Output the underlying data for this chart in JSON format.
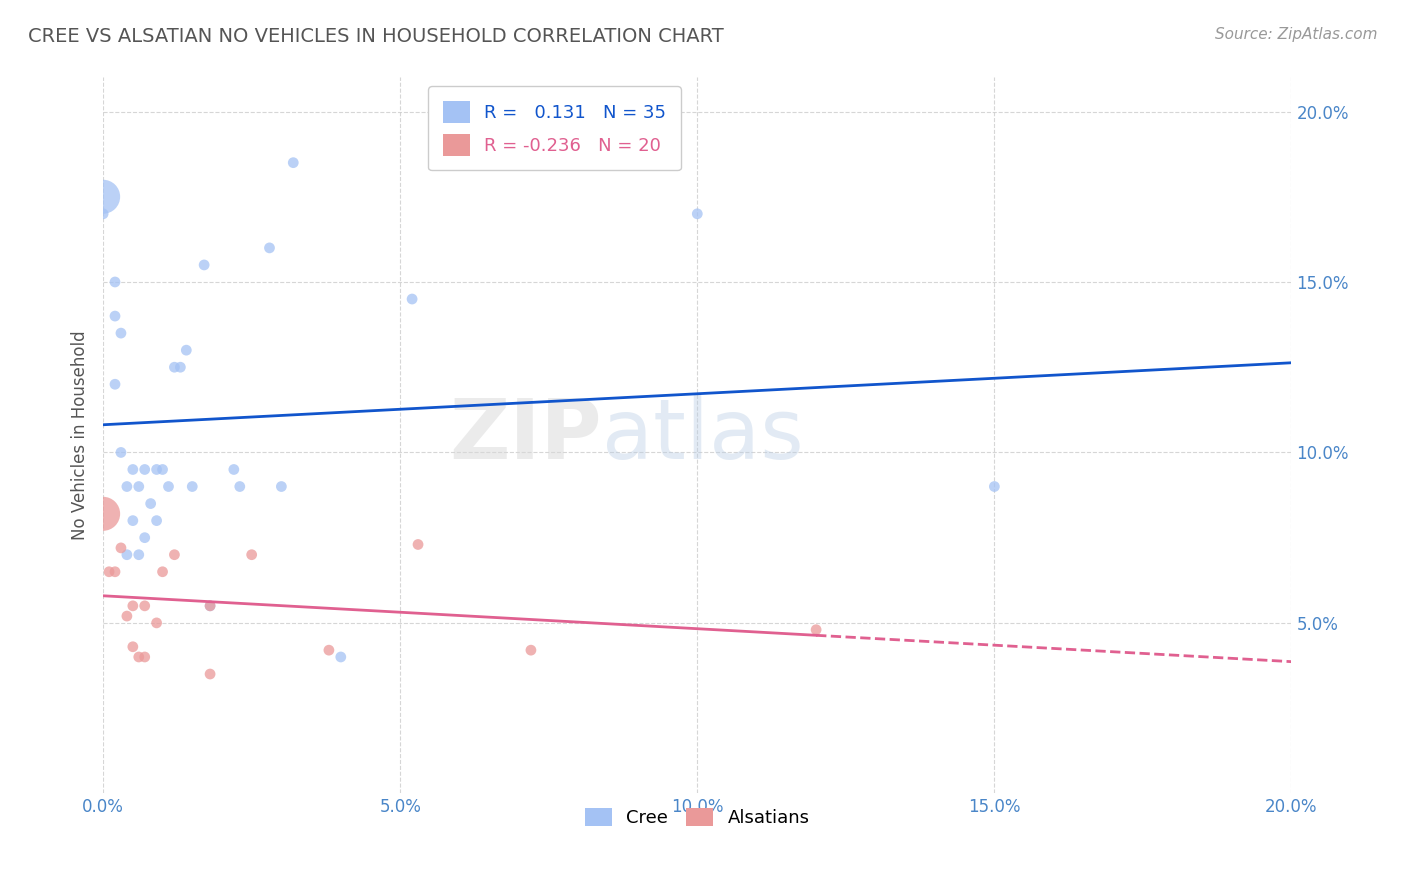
{
  "title": "CREE VS ALSATIAN NO VEHICLES IN HOUSEHOLD CORRELATION CHART",
  "source": "Source: ZipAtlas.com",
  "ylabel": "No Vehicles in Household",
  "watermark": "ZIPatlas",
  "xlim": [
    0.0,
    0.2
  ],
  "ylim": [
    0.0,
    0.21
  ],
  "xticks": [
    0.0,
    0.05,
    0.1,
    0.15,
    0.2
  ],
  "yticks": [
    0.05,
    0.1,
    0.15,
    0.2
  ],
  "xtick_labels": [
    "0.0%",
    "5.0%",
    "10.0%",
    "15.0%",
    "20.0%"
  ],
  "ytick_labels": [
    "5.0%",
    "10.0%",
    "15.0%",
    "20.0%"
  ],
  "cree_color": "#a4c2f4",
  "alsatian_color": "#ea9999",
  "cree_line_color": "#1155cc",
  "alsatian_line_color": "#e06090",
  "legend_R_cree": "0.131",
  "legend_N_cree": "35",
  "legend_R_alsatian": "-0.236",
  "legend_N_alsatian": "20",
  "cree_x": [
    0.0,
    0.0,
    0.002,
    0.002,
    0.002,
    0.003,
    0.003,
    0.004,
    0.004,
    0.005,
    0.005,
    0.006,
    0.006,
    0.007,
    0.007,
    0.008,
    0.009,
    0.009,
    0.01,
    0.011,
    0.012,
    0.013,
    0.014,
    0.015,
    0.017,
    0.018,
    0.022,
    0.023,
    0.028,
    0.03,
    0.032,
    0.04,
    0.052,
    0.1,
    0.15
  ],
  "cree_y": [
    0.175,
    0.17,
    0.15,
    0.14,
    0.12,
    0.135,
    0.1,
    0.09,
    0.07,
    0.095,
    0.08,
    0.09,
    0.07,
    0.095,
    0.075,
    0.085,
    0.095,
    0.08,
    0.095,
    0.09,
    0.125,
    0.125,
    0.13,
    0.09,
    0.155,
    0.055,
    0.095,
    0.09,
    0.16,
    0.09,
    0.185,
    0.04,
    0.145,
    0.17,
    0.09
  ],
  "cree_sizes": [
    600,
    60,
    60,
    60,
    60,
    60,
    60,
    60,
    60,
    60,
    60,
    60,
    60,
    60,
    60,
    60,
    60,
    60,
    60,
    60,
    60,
    60,
    60,
    60,
    60,
    60,
    60,
    60,
    60,
    60,
    60,
    60,
    60,
    60,
    60
  ],
  "alsatian_x": [
    0.0,
    0.001,
    0.002,
    0.003,
    0.004,
    0.005,
    0.005,
    0.006,
    0.007,
    0.007,
    0.009,
    0.01,
    0.012,
    0.018,
    0.018,
    0.025,
    0.038,
    0.053,
    0.072,
    0.12
  ],
  "alsatian_y": [
    0.082,
    0.065,
    0.065,
    0.072,
    0.052,
    0.055,
    0.043,
    0.04,
    0.055,
    0.04,
    0.05,
    0.065,
    0.07,
    0.055,
    0.035,
    0.07,
    0.042,
    0.073,
    0.042,
    0.048
  ],
  "alsatian_sizes": [
    600,
    60,
    60,
    60,
    60,
    60,
    60,
    60,
    60,
    60,
    60,
    60,
    60,
    60,
    60,
    60,
    60,
    60,
    60,
    60
  ],
  "background_color": "#ffffff",
  "grid_color": "#cccccc"
}
